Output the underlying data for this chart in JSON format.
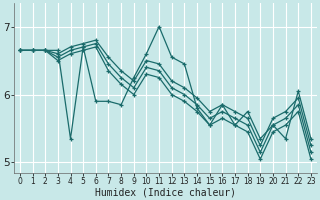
{
  "xlabel": "Humidex (Indice chaleur)",
  "bg_color": "#c8e8e8",
  "grid_color": "#b0d8d8",
  "line_color": "#1a6b6b",
  "xlim": [
    -0.5,
    23.5
  ],
  "ylim": [
    4.85,
    7.35
  ],
  "yticks": [
    5,
    6,
    7
  ],
  "xticks": [
    0,
    1,
    2,
    3,
    4,
    5,
    6,
    7,
    8,
    9,
    10,
    11,
    12,
    13,
    14,
    15,
    16,
    17,
    18,
    19,
    20,
    21,
    22,
    23
  ],
  "lines": [
    [
      6.65,
      6.65,
      6.65,
      6.65,
      5.35,
      6.7,
      5.9,
      5.9,
      5.85,
      6.25,
      6.6,
      7.0,
      6.55,
      6.45,
      5.8,
      5.55,
      5.85,
      5.55,
      5.75,
      5.35,
      5.55,
      5.35,
      6.05,
      5.35
    ],
    [
      6.65,
      6.65,
      6.65,
      6.6,
      6.7,
      6.75,
      6.8,
      6.55,
      6.35,
      6.2,
      6.5,
      6.45,
      6.2,
      6.1,
      5.95,
      5.75,
      5.85,
      5.75,
      5.65,
      5.25,
      5.65,
      5.75,
      5.95,
      5.25
    ],
    [
      6.65,
      6.65,
      6.65,
      6.55,
      6.65,
      6.7,
      6.75,
      6.45,
      6.25,
      6.1,
      6.4,
      6.35,
      6.1,
      6.0,
      5.85,
      5.65,
      5.75,
      5.65,
      5.55,
      5.15,
      5.55,
      5.65,
      5.85,
      5.15
    ],
    [
      6.65,
      6.65,
      6.65,
      6.5,
      6.6,
      6.65,
      6.7,
      6.35,
      6.15,
      6.0,
      6.3,
      6.25,
      6.0,
      5.9,
      5.75,
      5.55,
      5.65,
      5.55,
      5.45,
      5.05,
      5.45,
      5.55,
      5.75,
      5.05
    ]
  ]
}
